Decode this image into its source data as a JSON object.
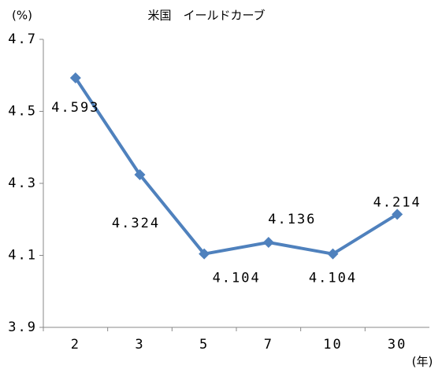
{
  "chart_data": {
    "type": "line",
    "title": "米国　イールドカーブ",
    "y_unit": "(%)",
    "x_unit": "(年)",
    "categories": [
      "2",
      "3",
      "5",
      "7",
      "10",
      "30"
    ],
    "series": [
      {
        "name": "米国",
        "color": "#4f81bd",
        "values": [
          4.593,
          4.324,
          4.104,
          4.136,
          4.104,
          4.214
        ]
      }
    ],
    "ylim": [
      3.9,
      4.7
    ],
    "yticks": [
      3.9,
      4.1,
      4.3,
      4.5,
      4.7
    ]
  }
}
